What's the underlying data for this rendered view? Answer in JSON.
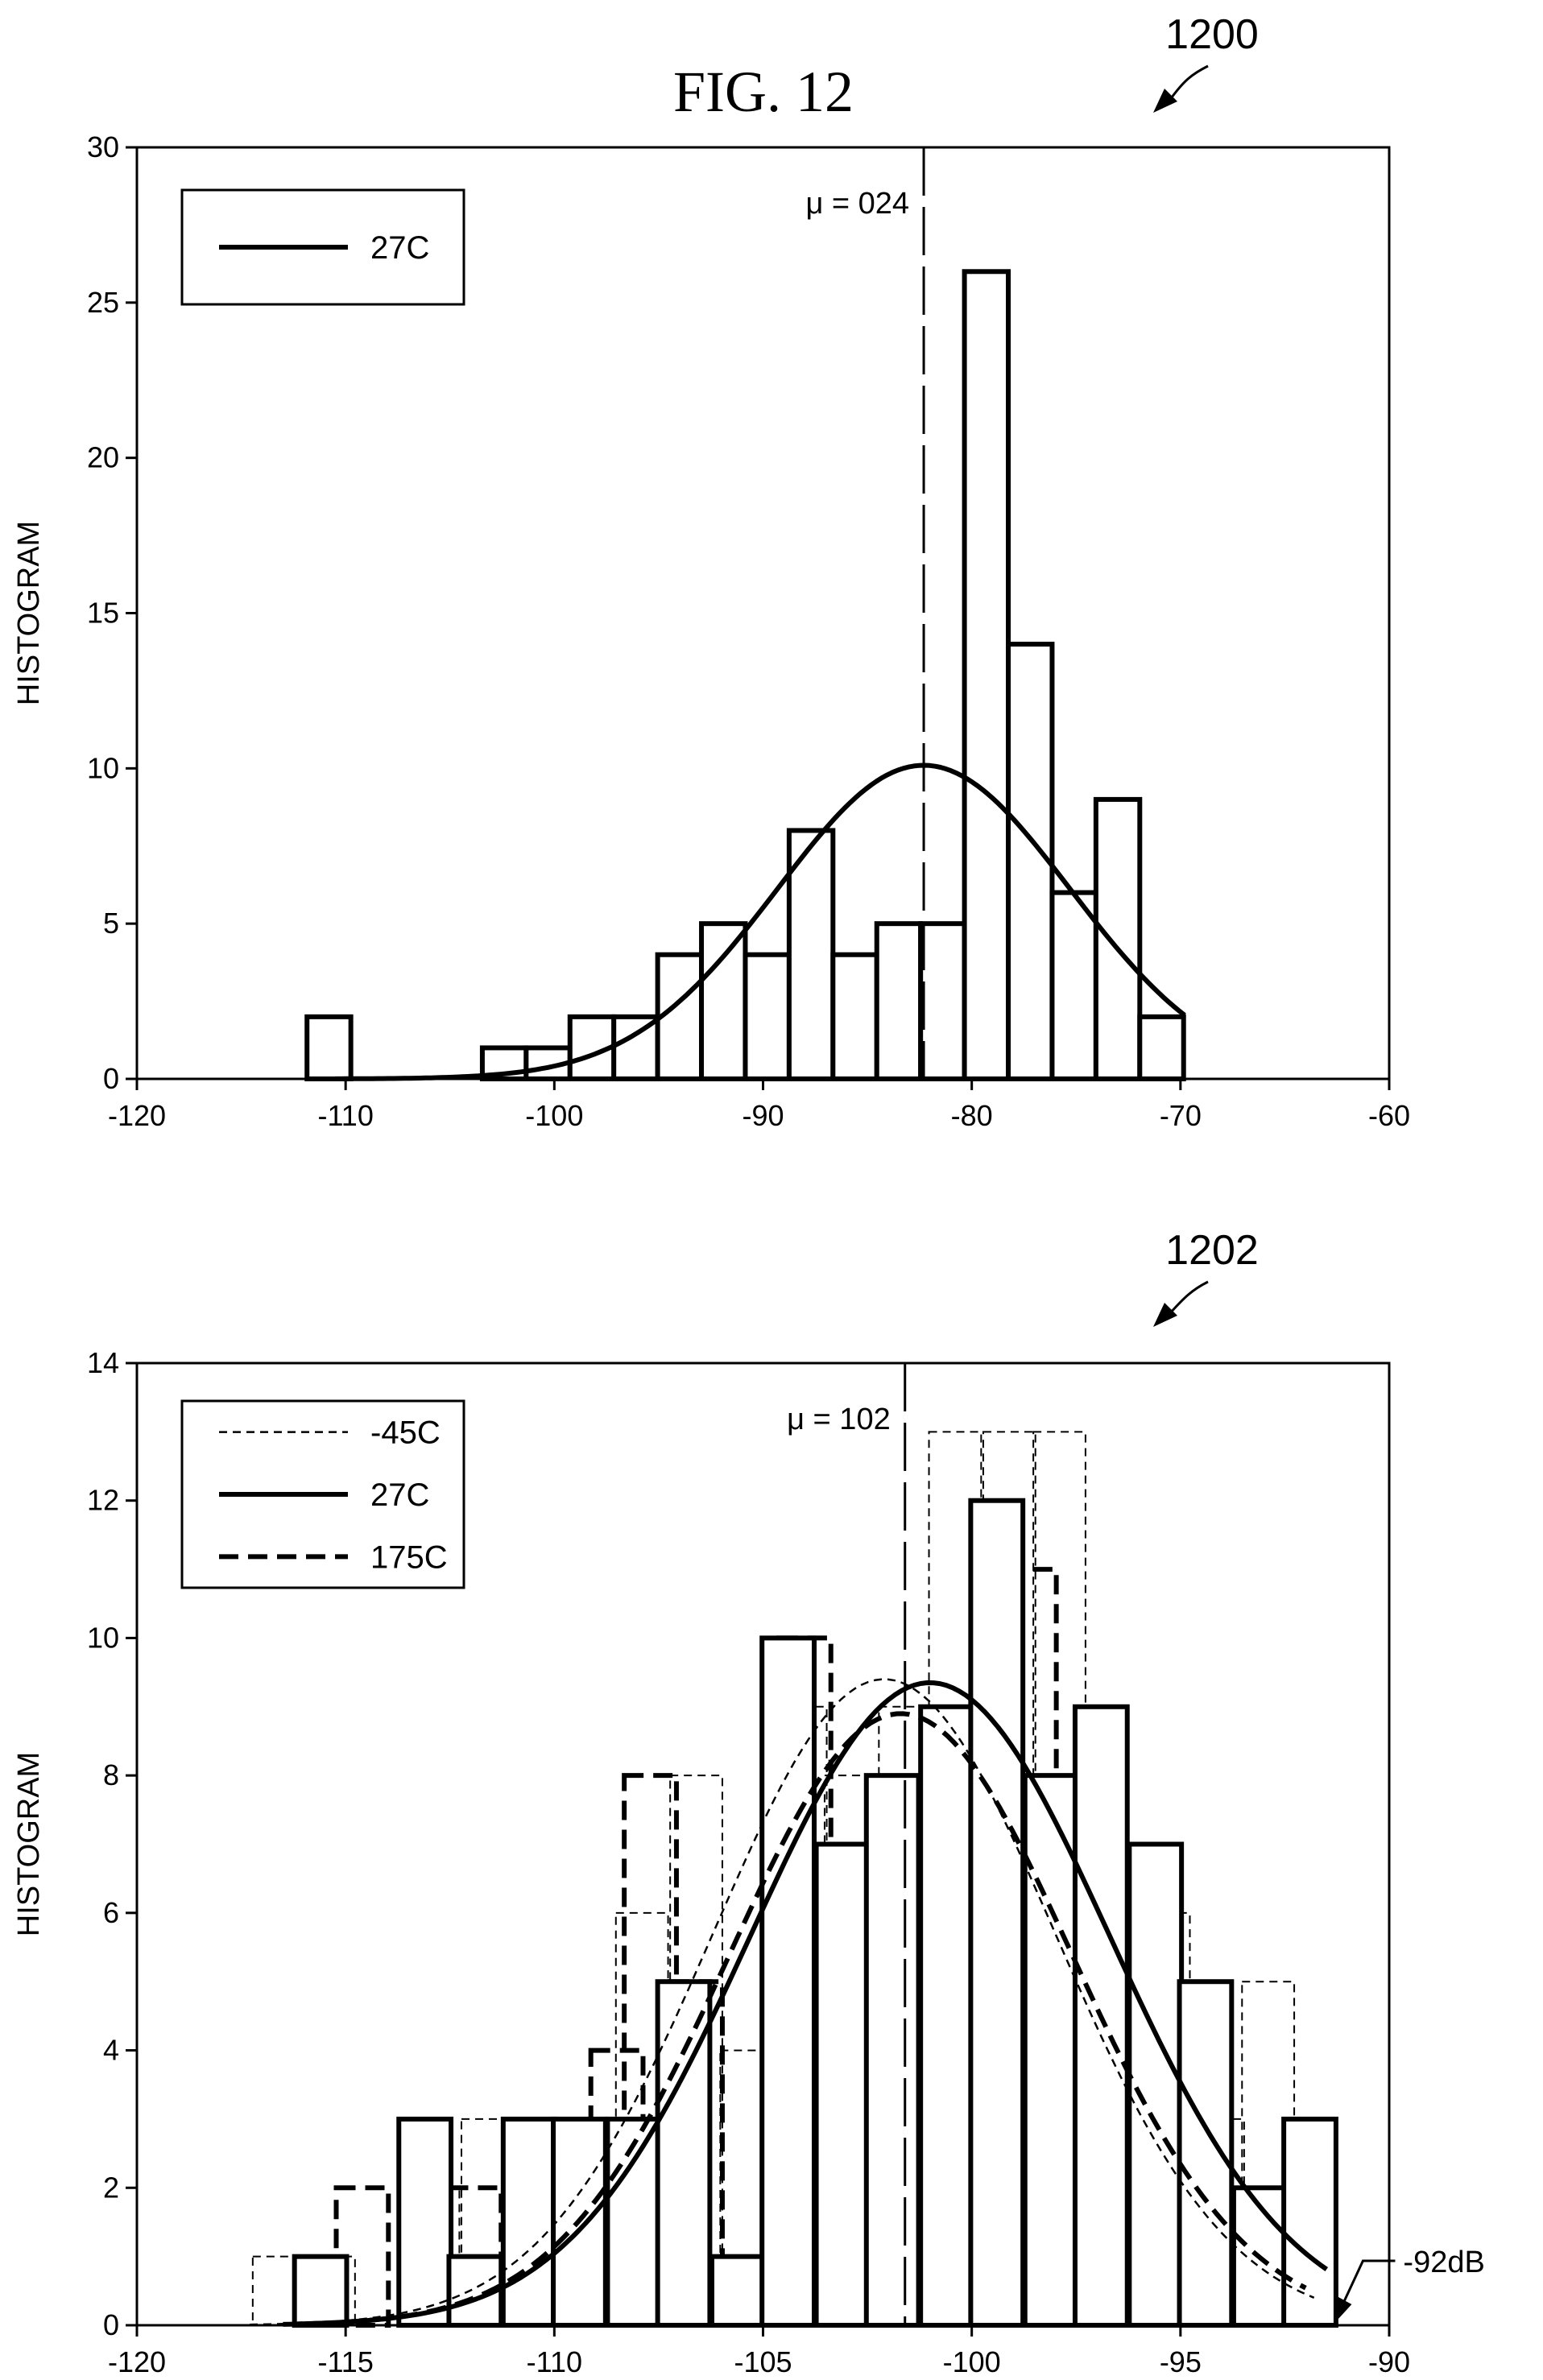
{
  "figure": {
    "title": "FIG. 12"
  },
  "chart_data": [
    {
      "type": "bar",
      "ref_number": "1200",
      "xlim": [
        -120,
        -60
      ],
      "ylim": [
        0,
        30
      ],
      "xticks": [
        -120,
        -110,
        -100,
        -90,
        -80,
        -70,
        -60
      ],
      "yticks": [
        0,
        5,
        10,
        15,
        20,
        25,
        30
      ],
      "xlabel": "",
      "ylabel": "HISTOGRAM",
      "grid": false,
      "legend_position": "top-left",
      "bin_width": 2.1,
      "series": [
        {
          "name": "27C",
          "style": "solid",
          "bins": [
            {
              "x": -110.8,
              "y": 2
            },
            {
              "x": -102.4,
              "y": 1
            },
            {
              "x": -100.3,
              "y": 1
            },
            {
              "x": -98.2,
              "y": 2
            },
            {
              "x": -96.1,
              "y": 2
            },
            {
              "x": -94.0,
              "y": 4
            },
            {
              "x": -91.9,
              "y": 5
            },
            {
              "x": -89.8,
              "y": 4
            },
            {
              "x": -87.7,
              "y": 8
            },
            {
              "x": -85.6,
              "y": 4
            },
            {
              "x": -83.5,
              "y": 5
            },
            {
              "x": -81.4,
              "y": 5
            },
            {
              "x": -79.3,
              "y": 26
            },
            {
              "x": -77.2,
              "y": 14
            },
            {
              "x": -75.1,
              "y": 6
            },
            {
              "x": -73.0,
              "y": 9
            },
            {
              "x": -70.9,
              "y": 2
            }
          ],
          "fit": {
            "mean": -82.3,
            "sd": 7.0,
            "peak": 10.1,
            "from": -110.5,
            "to": -69.8
          }
        }
      ],
      "mean_marker": {
        "x": -82.3,
        "label": "μ = 024"
      }
    },
    {
      "type": "bar",
      "ref_number": "1202",
      "xlim": [
        -120,
        -90
      ],
      "ylim": [
        0,
        14
      ],
      "xticks": [
        -120,
        -115,
        -110,
        -105,
        -100,
        -95,
        -90
      ],
      "yticks": [
        0,
        2,
        4,
        6,
        8,
        10,
        12,
        14
      ],
      "xlabel": "",
      "ylabel": "HISTOGRAM",
      "grid": false,
      "legend_position": "top-left",
      "bin_width": 1.25,
      "series": [
        {
          "name": "-45C",
          "style": "thin-dashed",
          "bins": [
            {
              "x": -116.6,
              "y": 1
            },
            {
              "x": -115.4,
              "y": 1
            },
            {
              "x": -112.9,
              "y": 2
            },
            {
              "x": -111.6,
              "y": 3
            },
            {
              "x": -110.4,
              "y": 3
            },
            {
              "x": -109.1,
              "y": 3
            },
            {
              "x": -107.9,
              "y": 6
            },
            {
              "x": -106.6,
              "y": 8
            },
            {
              "x": -105.4,
              "y": 4
            },
            {
              "x": -104.1,
              "y": 9
            },
            {
              "x": -102.9,
              "y": 8
            },
            {
              "x": -101.6,
              "y": 9
            },
            {
              "x": -100.4,
              "y": 13
            },
            {
              "x": -99.1,
              "y": 13
            },
            {
              "x": -97.9,
              "y": 13
            },
            {
              "x": -96.6,
              "y": 7
            },
            {
              "x": -95.4,
              "y": 6
            },
            {
              "x": -94.1,
              "y": 3
            },
            {
              "x": -92.9,
              "y": 5
            }
          ],
          "fit": {
            "mean": -102.1,
            "sd": 4.1,
            "peak": 9.4,
            "from": -117.3,
            "to": -91.8
          }
        },
        {
          "name": "27C",
          "style": "solid",
          "bins": [
            {
              "x": -115.6,
              "y": 1
            },
            {
              "x": -114.4,
              "y": 0
            },
            {
              "x": -113.1,
              "y": 3
            },
            {
              "x": -111.9,
              "y": 1
            },
            {
              "x": -110.6,
              "y": 3
            },
            {
              "x": -109.4,
              "y": 3
            },
            {
              "x": -108.1,
              "y": 3
            },
            {
              "x": -106.9,
              "y": 5
            },
            {
              "x": -105.6,
              "y": 1
            },
            {
              "x": -104.4,
              "y": 10
            },
            {
              "x": -103.1,
              "y": 7
            },
            {
              "x": -101.9,
              "y": 8
            },
            {
              "x": -100.6,
              "y": 9
            },
            {
              "x": -99.4,
              "y": 12
            },
            {
              "x": -98.1,
              "y": 8
            },
            {
              "x": -96.9,
              "y": 9
            },
            {
              "x": -95.6,
              "y": 7
            },
            {
              "x": -94.4,
              "y": 5
            },
            {
              "x": -93.1,
              "y": 2
            },
            {
              "x": -91.9,
              "y": 3
            }
          ],
          "fit": {
            "mean": -101.0,
            "sd": 4.3,
            "peak": 9.35,
            "from": -116.2,
            "to": -91.5
          }
        },
        {
          "name": "175C",
          "style": "bold-dashed",
          "bins": [
            {
              "x": -114.6,
              "y": 2
            },
            {
              "x": -111.9,
              "y": 2
            },
            {
              "x": -108.5,
              "y": 4
            },
            {
              "x": -107.7,
              "y": 8
            },
            {
              "x": -106.6,
              "y": 5
            },
            {
              "x": -104.0,
              "y": 10
            },
            {
              "x": -98.6,
              "y": 11
            }
          ],
          "fit": {
            "mean": -101.7,
            "sd": 4.1,
            "peak": 8.9,
            "from": -116.5,
            "to": -92.0
          }
        }
      ],
      "mean_marker": {
        "x": -101.6,
        "label": "μ = 102"
      },
      "annotation": {
        "x": -91.4,
        "y": 0,
        "label": "-92dB"
      }
    }
  ]
}
